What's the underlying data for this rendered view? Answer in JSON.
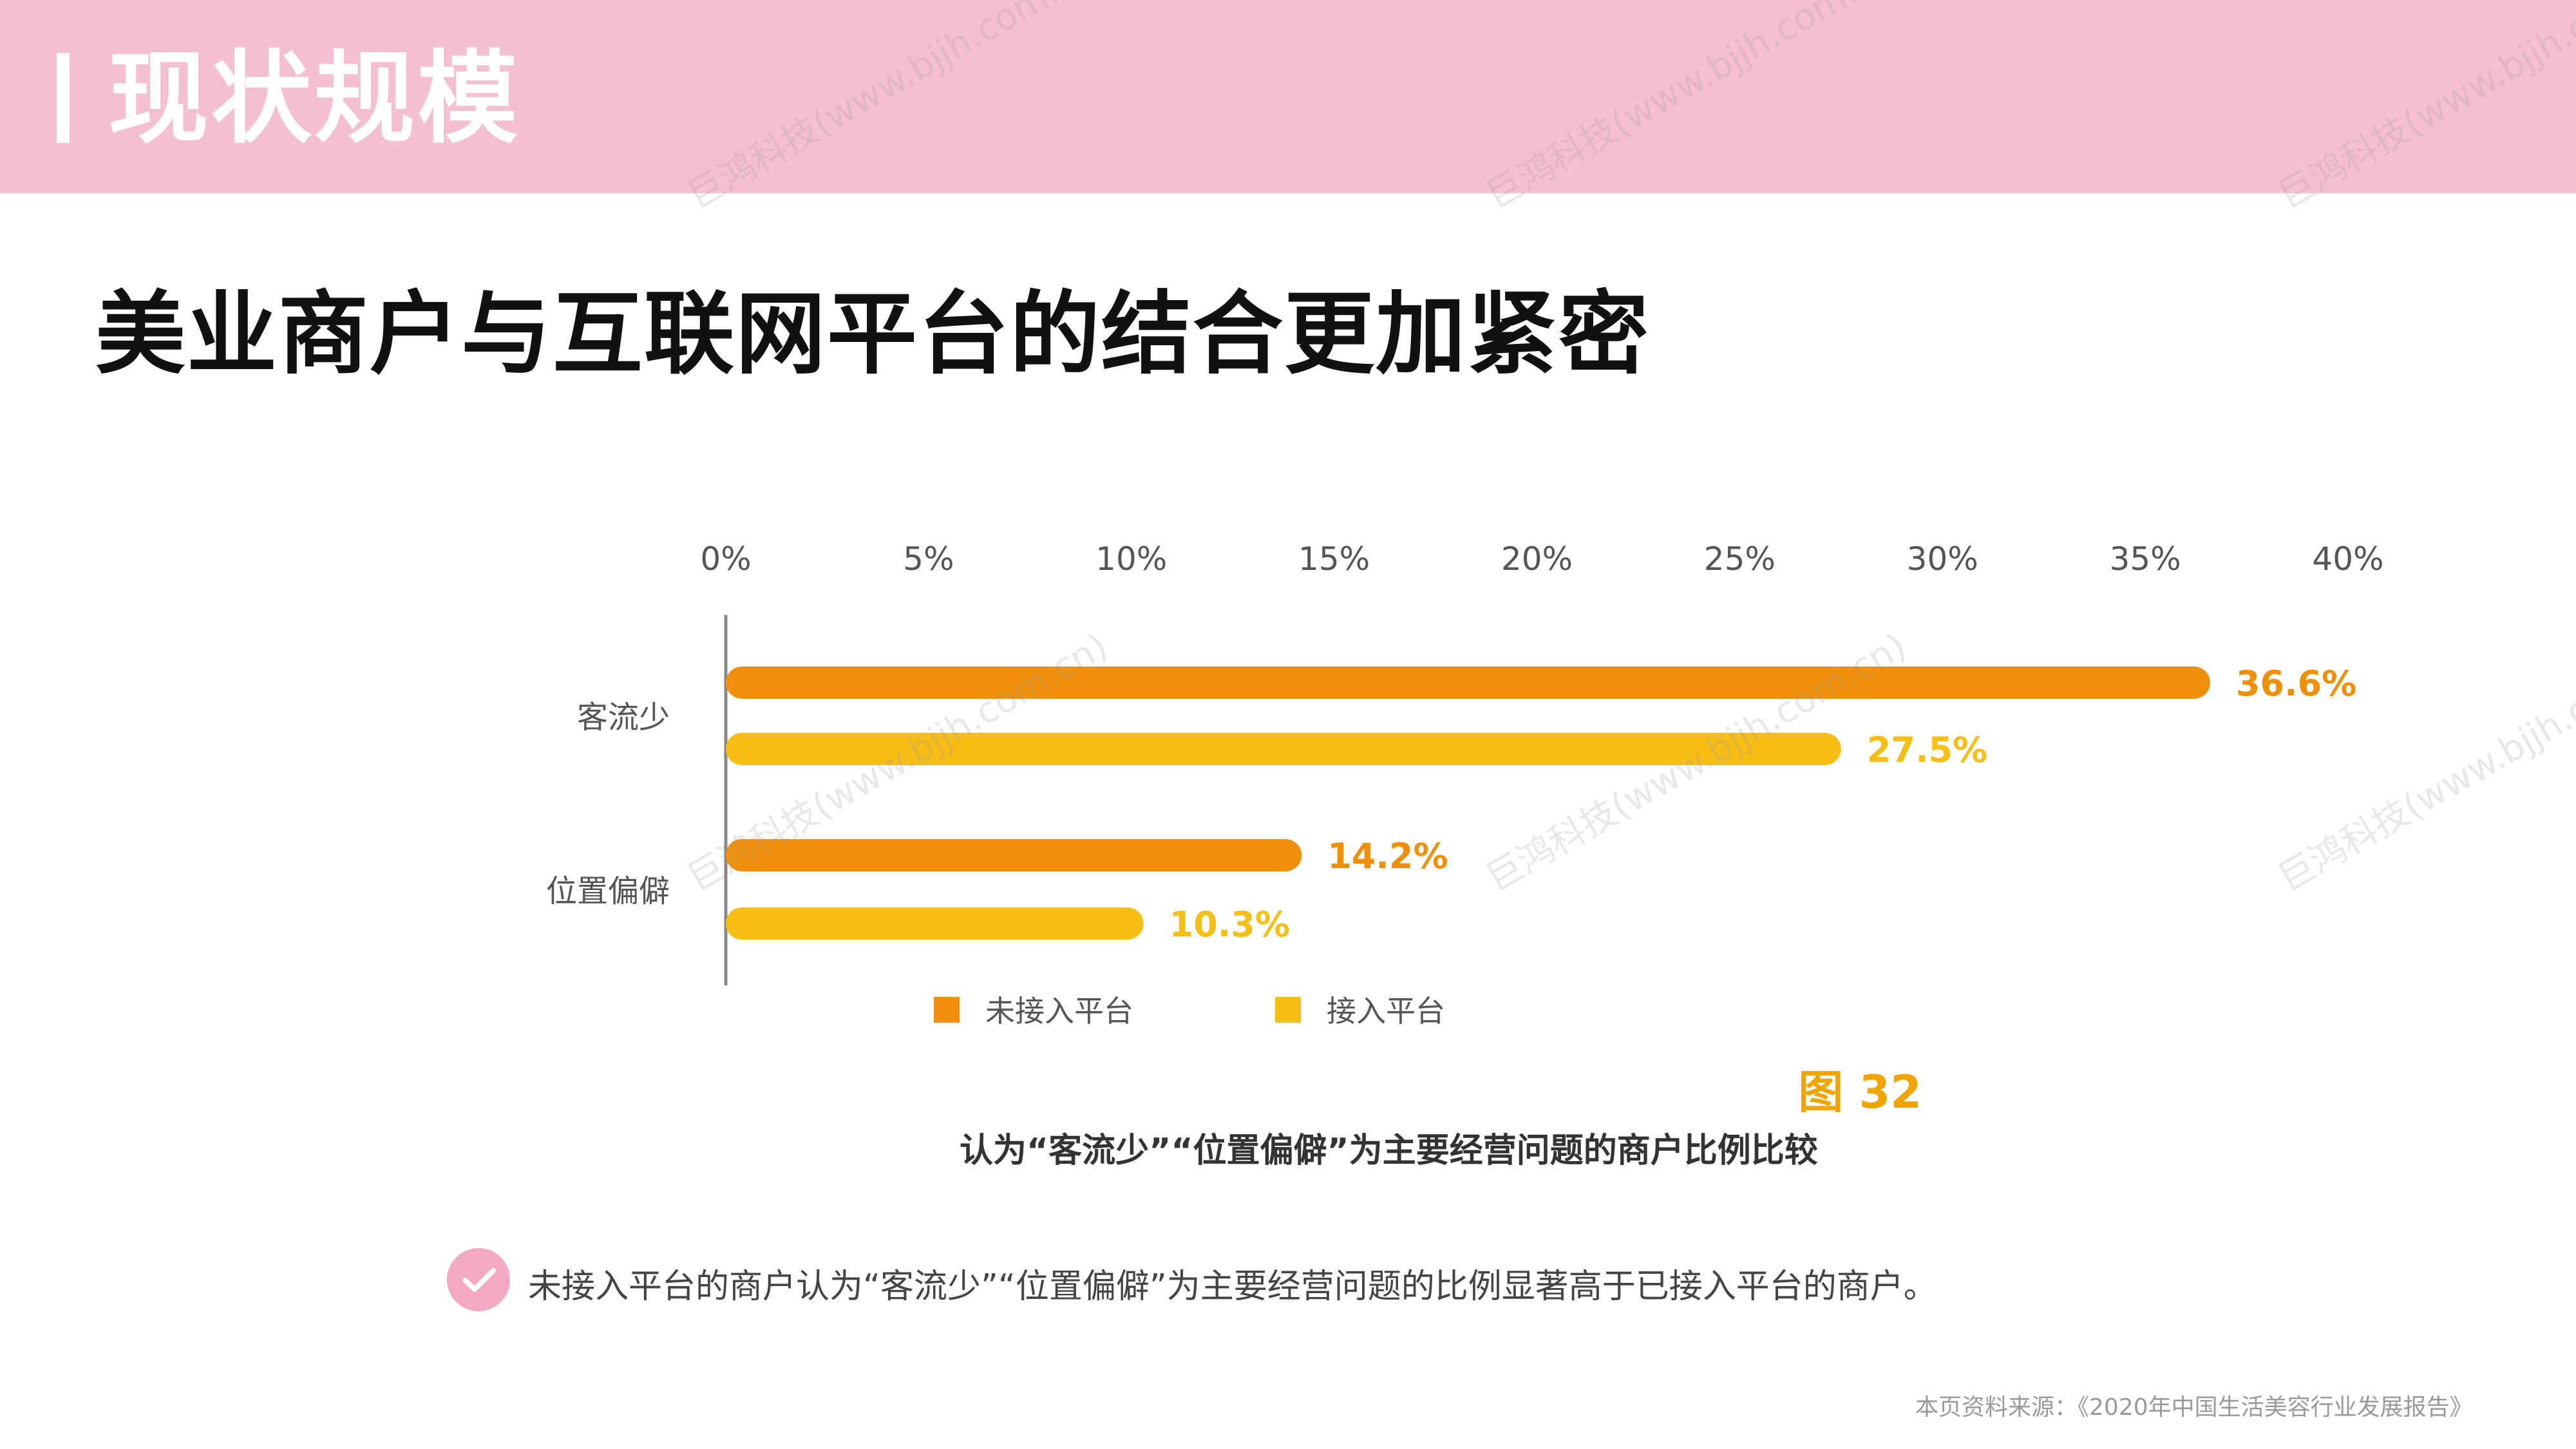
{
  "header": {
    "title": "现状规模"
  },
  "main_title": "美业商户与互联网平台的结合更加紧密",
  "chart_data": {
    "type": "bar",
    "orientation": "horizontal",
    "categories": [
      "客流少",
      "位置偏僻"
    ],
    "series": [
      {
        "name": "未接入平台",
        "color": "#f0900a",
        "values": [
          36.6,
          14.2
        ],
        "labels": [
          "36.6%",
          "14.2%"
        ]
      },
      {
        "name": "接入平台",
        "color": "#f7be16",
        "values": [
          27.5,
          10.3
        ],
        "labels": [
          "27.5%",
          "10.3%"
        ]
      }
    ],
    "xlim": [
      0,
      40
    ],
    "ticks": [
      "0%",
      "5%",
      "10%",
      "15%",
      "20%",
      "25%",
      "30%",
      "35%",
      "40%"
    ],
    "tick_values": [
      0,
      5,
      10,
      15,
      20,
      25,
      30,
      35,
      40
    ],
    "legend_position": "bottom"
  },
  "figure": {
    "label": "图 32",
    "caption": "认为“客流少”“位置偏僻”为主要经营问题的商户比例比较"
  },
  "conclusion": {
    "icon": "check-icon",
    "text": "未接入平台的商户认为“客流少”“位置偏僻”为主要经营问题的比例显著高于已接入平台的商户。"
  },
  "source": "本页资料来源：《2020年中国生活美容行业发展报告》",
  "watermark": "巨鸿科技(www.bjjh.com.cn)"
}
